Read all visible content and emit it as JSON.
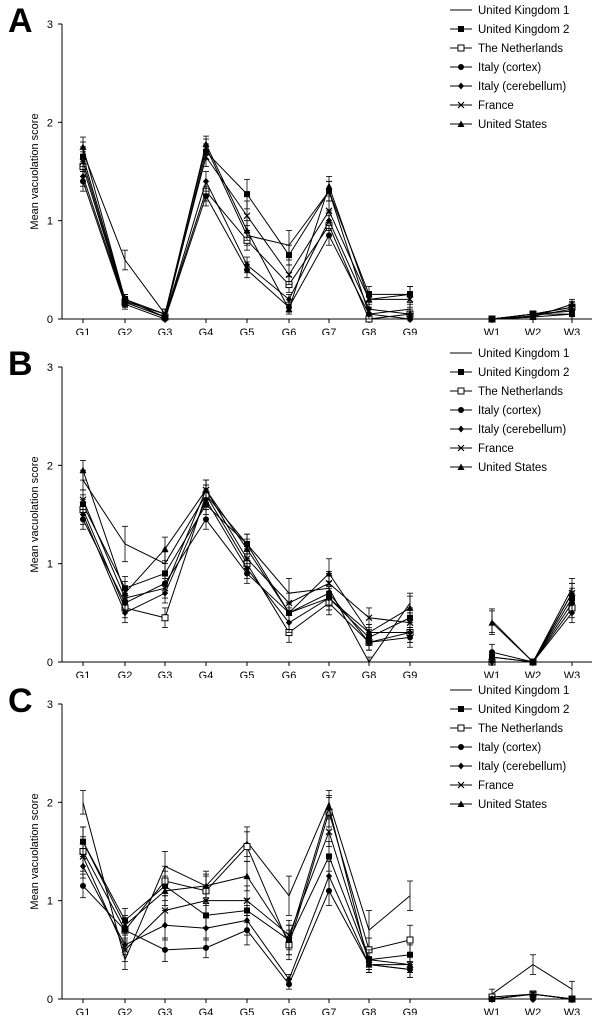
{
  "legend_labels": [
    "United Kingdom 1",
    "United Kingdom 2",
    "The Netherlands",
    "Italy (cortex)",
    "Italy (cerebellum)",
    "France",
    "United States"
  ],
  "chart_data": [
    {
      "type": "line",
      "panel": "A",
      "ylabel": "Mean vacuolation score",
      "ylim": [
        0,
        3
      ],
      "yticks": [
        0,
        1,
        2,
        3
      ],
      "grid": false,
      "legend_placement": "top-right",
      "categories": [
        "G1",
        "G2",
        "G3",
        "G4",
        "G5",
        "G6",
        "G7",
        "G8",
        "G9",
        "W1",
        "W2",
        "W3"
      ],
      "series": [
        {
          "name": "United Kingdom 1",
          "marker": "none",
          "values": [
            1.7,
            0.6,
            0.05,
            1.75,
            0.85,
            0.75,
            1.3,
            0.05,
            0.1,
            0.0,
            0.03,
            0.1
          ],
          "errors": [
            0.1,
            0.1,
            0.05,
            0.08,
            0.1,
            0.15,
            0.1,
            0.05,
            0.05,
            0.0,
            0.03,
            0.05
          ]
        },
        {
          "name": "United Kingdom 2",
          "marker": "square-filled",
          "values": [
            1.65,
            0.2,
            0.02,
            1.7,
            1.27,
            0.65,
            1.3,
            0.25,
            0.25,
            0.0,
            0.02,
            0.05
          ],
          "errors": [
            0.1,
            0.05,
            0.03,
            0.08,
            0.15,
            0.1,
            0.1,
            0.08,
            0.08,
            0.0,
            0.02,
            0.05
          ]
        },
        {
          "name": "The Netherlands",
          "marker": "square-open",
          "values": [
            1.55,
            0.17,
            0.02,
            1.3,
            0.8,
            0.35,
            0.95,
            0.0,
            0.05,
            0.0,
            0.05,
            0.12
          ],
          "errors": [
            0.1,
            0.05,
            0.03,
            0.1,
            0.1,
            0.08,
            0.1,
            0.03,
            0.05,
            0.0,
            0.03,
            0.05
          ]
        },
        {
          "name": "Italy (cortex)",
          "marker": "circle-filled",
          "values": [
            1.4,
            0.15,
            0.0,
            1.25,
            0.5,
            0.12,
            0.85,
            0.05,
            0.0,
            0.0,
            0.05,
            0.08
          ],
          "errors": [
            0.1,
            0.05,
            0.03,
            0.1,
            0.08,
            0.05,
            0.1,
            0.05,
            0.03,
            0.0,
            0.03,
            0.05
          ]
        },
        {
          "name": "Italy (cerebellum)",
          "marker": "diamond-filled",
          "values": [
            1.45,
            0.17,
            0.02,
            1.4,
            0.55,
            0.2,
            1.0,
            0.1,
            0.05,
            0.0,
            0.05,
            0.05
          ],
          "errors": [
            0.1,
            0.05,
            0.03,
            0.1,
            0.08,
            0.05,
            0.1,
            0.05,
            0.03,
            0.0,
            0.03,
            0.05
          ]
        },
        {
          "name": "France",
          "marker": "x",
          "values": [
            1.6,
            0.18,
            0.05,
            1.65,
            1.05,
            0.45,
            1.1,
            0.2,
            0.2,
            0.0,
            0.05,
            0.12
          ],
          "errors": [
            0.1,
            0.05,
            0.05,
            0.1,
            0.15,
            0.1,
            0.1,
            0.08,
            0.08,
            0.0,
            0.03,
            0.06
          ]
        },
        {
          "name": "United States",
          "marker": "triangle-filled",
          "values": [
            1.75,
            0.2,
            0.05,
            1.78,
            0.9,
            0.1,
            1.35,
            0.2,
            0.25,
            0.0,
            0.02,
            0.15
          ],
          "errors": [
            0.1,
            0.05,
            0.05,
            0.08,
            0.1,
            0.05,
            0.1,
            0.08,
            0.08,
            0.0,
            0.02,
            0.05
          ]
        }
      ]
    },
    {
      "type": "line",
      "panel": "B",
      "ylabel": "Mean vacuolation score",
      "ylim": [
        0,
        3
      ],
      "yticks": [
        0,
        1,
        2,
        3
      ],
      "grid": false,
      "legend_placement": "top-right",
      "categories": [
        "G1",
        "G2",
        "G3",
        "G4",
        "G5",
        "G6",
        "G7",
        "G8",
        "G9",
        "W1",
        "W2",
        "W3"
      ],
      "series": [
        {
          "name": "United Kingdom 1",
          "marker": "none",
          "values": [
            1.85,
            1.2,
            1.0,
            1.7,
            1.2,
            0.7,
            0.75,
            0.0,
            0.6,
            0.42,
            0.0,
            0.75
          ],
          "errors": [
            0.1,
            0.18,
            0.12,
            0.1,
            0.1,
            0.15,
            0.15,
            0.05,
            0.1,
            0.12,
            0.0,
            0.1
          ]
        },
        {
          "name": "United Kingdom 2",
          "marker": "square-filled",
          "values": [
            1.6,
            0.75,
            0.9,
            1.6,
            1.2,
            0.5,
            0.65,
            0.25,
            0.45,
            0.05,
            0.0,
            0.65
          ],
          "errors": [
            0.1,
            0.12,
            0.1,
            0.1,
            0.1,
            0.1,
            0.12,
            0.08,
            0.1,
            0.05,
            0.0,
            0.1
          ]
        },
        {
          "name": "The Netherlands",
          "marker": "square-open",
          "values": [
            1.55,
            0.55,
            0.45,
            1.7,
            1.0,
            0.3,
            0.6,
            0.2,
            0.3,
            0.0,
            0.0,
            0.55
          ],
          "errors": [
            0.1,
            0.1,
            0.1,
            0.1,
            0.1,
            0.1,
            0.12,
            0.08,
            0.1,
            0.05,
            0.0,
            0.1
          ]
        },
        {
          "name": "Italy (cortex)",
          "marker": "circle-filled",
          "values": [
            1.45,
            0.6,
            0.8,
            1.45,
            0.9,
            0.5,
            0.7,
            0.2,
            0.25,
            0.1,
            0.0,
            0.6
          ],
          "errors": [
            0.1,
            0.1,
            0.1,
            0.1,
            0.1,
            0.1,
            0.12,
            0.08,
            0.1,
            0.08,
            0.0,
            0.1
          ]
        },
        {
          "name": "Italy (cerebellum)",
          "marker": "diamond-filled",
          "values": [
            1.5,
            0.5,
            0.7,
            1.65,
            0.95,
            0.4,
            0.65,
            0.3,
            0.3,
            0.0,
            0.0,
            0.5
          ],
          "errors": [
            0.1,
            0.1,
            0.1,
            0.1,
            0.1,
            0.1,
            0.12,
            0.08,
            0.1,
            0.05,
            0.0,
            0.1
          ]
        },
        {
          "name": "France",
          "marker": "x",
          "values": [
            1.65,
            0.65,
            0.75,
            1.75,
            1.05,
            0.6,
            0.8,
            0.45,
            0.4,
            0.05,
            0.0,
            0.7
          ],
          "errors": [
            0.1,
            0.12,
            0.1,
            0.1,
            0.1,
            0.1,
            0.12,
            0.1,
            0.1,
            0.05,
            0.0,
            0.1
          ]
        },
        {
          "name": "United States",
          "marker": "triangle-filled",
          "values": [
            1.95,
            0.7,
            1.15,
            1.75,
            1.15,
            0.5,
            0.9,
            0.3,
            0.55,
            0.4,
            0.0,
            0.7
          ],
          "errors": [
            0.1,
            0.12,
            0.12,
            0.1,
            0.1,
            0.1,
            0.15,
            0.08,
            0.12,
            0.12,
            0.0,
            0.1
          ]
        }
      ]
    },
    {
      "type": "line",
      "panel": "C",
      "ylabel": "Mean vacuolation score",
      "ylim": [
        0,
        3
      ],
      "yticks": [
        0,
        1,
        2,
        3
      ],
      "grid": false,
      "legend_placement": "top-right",
      "categories": [
        "G1",
        "G2",
        "G3",
        "G4",
        "G5",
        "G6",
        "G7",
        "G8",
        "G9",
        "W1",
        "W2",
        "W3"
      ],
      "series": [
        {
          "name": "United Kingdom 1",
          "marker": "none",
          "values": [
            2.0,
            0.4,
            1.35,
            1.15,
            1.6,
            1.05,
            2.0,
            0.7,
            1.05,
            0.05,
            0.35,
            0.1
          ],
          "errors": [
            0.12,
            0.1,
            0.15,
            0.15,
            0.15,
            0.2,
            0.12,
            0.2,
            0.15,
            0.05,
            0.1,
            0.08
          ]
        },
        {
          "name": "United Kingdom 2",
          "marker": "square-filled",
          "values": [
            1.6,
            0.8,
            1.15,
            0.85,
            0.9,
            0.6,
            1.45,
            0.4,
            0.45,
            0.0,
            0.05,
            0.0
          ],
          "errors": [
            0.15,
            0.12,
            0.15,
            0.12,
            0.12,
            0.15,
            0.15,
            0.1,
            0.1,
            0.02,
            0.03,
            0.02
          ]
        },
        {
          "name": "The Netherlands",
          "marker": "square-open",
          "values": [
            1.5,
            0.7,
            1.2,
            1.1,
            1.55,
            0.55,
            1.9,
            0.5,
            0.6,
            0.02,
            0.05,
            0.0
          ],
          "errors": [
            0.15,
            0.12,
            0.15,
            0.15,
            0.15,
            0.15,
            0.15,
            0.12,
            0.15,
            0.02,
            0.03,
            0.02
          ]
        },
        {
          "name": "Italy (cortex)",
          "marker": "circle-filled",
          "values": [
            1.15,
            0.7,
            0.5,
            0.52,
            0.7,
            0.15,
            1.1,
            0.35,
            0.3,
            0.0,
            0.0,
            0.0
          ],
          "errors": [
            0.12,
            0.1,
            0.12,
            0.1,
            0.15,
            0.05,
            0.15,
            0.08,
            0.08,
            0.02,
            0.02,
            0.02
          ]
        },
        {
          "name": "Italy (cerebellum)",
          "marker": "diamond-filled",
          "values": [
            1.35,
            0.55,
            0.75,
            0.72,
            0.8,
            0.2,
            1.25,
            0.35,
            0.3,
            0.0,
            0.0,
            0.0
          ],
          "errors": [
            0.12,
            0.1,
            0.15,
            0.12,
            0.15,
            0.05,
            0.15,
            0.08,
            0.08,
            0.02,
            0.02,
            0.02
          ]
        },
        {
          "name": "France",
          "marker": "x",
          "values": [
            1.45,
            0.5,
            0.9,
            1.0,
            1.0,
            0.65,
            1.7,
            0.4,
            0.35,
            0.0,
            0.05,
            0.0
          ],
          "errors": [
            0.15,
            0.12,
            0.15,
            0.15,
            0.15,
            0.15,
            0.15,
            0.1,
            0.08,
            0.02,
            0.03,
            0.02
          ]
        },
        {
          "name": "United States",
          "marker": "triangle-filled",
          "values": [
            1.6,
            0.75,
            1.1,
            1.15,
            1.25,
            0.6,
            1.95,
            0.35,
            0.35,
            0.0,
            0.05,
            0.0
          ],
          "errors": [
            0.15,
            0.1,
            0.15,
            0.12,
            0.15,
            0.15,
            0.12,
            0.08,
            0.08,
            0.02,
            0.03,
            0.02
          ]
        }
      ]
    }
  ]
}
